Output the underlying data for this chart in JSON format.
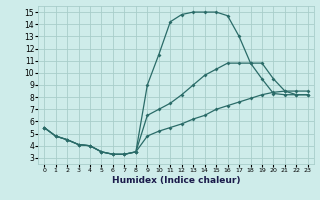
{
  "xlabel": "Humidex (Indice chaleur)",
  "background_color": "#ceecea",
  "grid_color": "#a8ceca",
  "line_color": "#2a6b68",
  "xlim": [
    -0.5,
    23.5
  ],
  "ylim": [
    2.5,
    15.5
  ],
  "xticks": [
    0,
    1,
    2,
    3,
    4,
    5,
    6,
    7,
    8,
    9,
    10,
    11,
    12,
    13,
    14,
    15,
    16,
    17,
    18,
    19,
    20,
    21,
    22,
    23
  ],
  "yticks": [
    3,
    4,
    5,
    6,
    7,
    8,
    9,
    10,
    11,
    12,
    13,
    14,
    15
  ],
  "line1_x": [
    0,
    1,
    2,
    3,
    4,
    5,
    6,
    7,
    8,
    9,
    10,
    11,
    12,
    13,
    14,
    15,
    16,
    17,
    18,
    19,
    20,
    21,
    22,
    23
  ],
  "line1_y": [
    5.5,
    4.8,
    4.5,
    4.1,
    4.0,
    3.5,
    3.3,
    3.3,
    3.5,
    9.0,
    11.5,
    14.2,
    14.8,
    15.0,
    15.0,
    15.0,
    14.7,
    13.0,
    10.8,
    9.5,
    8.3,
    8.2,
    8.2,
    8.2
  ],
  "line2_x": [
    0,
    1,
    2,
    3,
    4,
    5,
    6,
    7,
    8,
    9,
    10,
    11,
    12,
    13,
    14,
    15,
    16,
    17,
    18,
    19,
    20,
    21,
    22,
    23
  ],
  "line2_y": [
    5.5,
    4.8,
    4.5,
    4.1,
    4.0,
    3.5,
    3.3,
    3.3,
    3.5,
    6.5,
    7.0,
    7.5,
    8.2,
    9.0,
    9.8,
    10.3,
    10.8,
    10.8,
    10.8,
    10.8,
    9.5,
    8.5,
    8.2,
    8.2
  ],
  "line3_x": [
    0,
    1,
    2,
    3,
    4,
    5,
    6,
    7,
    8,
    9,
    10,
    11,
    12,
    13,
    14,
    15,
    16,
    17,
    18,
    19,
    20,
    21,
    22,
    23
  ],
  "line3_y": [
    5.5,
    4.8,
    4.5,
    4.1,
    4.0,
    3.5,
    3.3,
    3.3,
    3.5,
    4.8,
    5.2,
    5.5,
    5.8,
    6.2,
    6.5,
    7.0,
    7.3,
    7.6,
    7.9,
    8.2,
    8.4,
    8.5,
    8.5,
    8.5
  ]
}
